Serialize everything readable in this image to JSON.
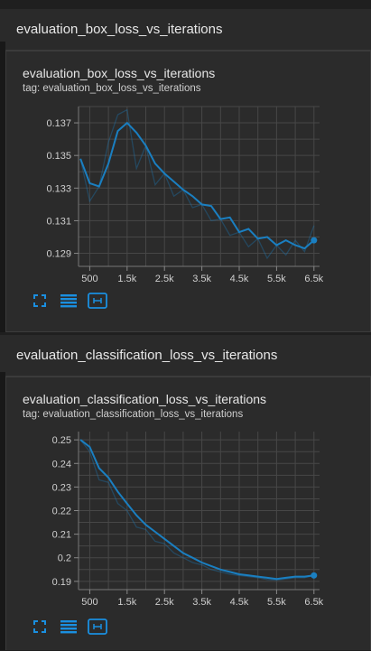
{
  "sections": [
    {
      "header": "evaluation_box_loss_vs_iterations",
      "card_title": "evaluation_box_loss_vs_iterations",
      "card_tag": "tag: evaluation_box_loss_vs_iterations"
    },
    {
      "header": "evaluation_classification_loss_vs_iterations",
      "card_title": "evaluation_classification_loss_vs_iterations",
      "card_tag": "tag: evaluation_classification_loss_vs_iterations"
    }
  ],
  "toolbar": {
    "icons": [
      "fullscreen-icon",
      "data-table-icon",
      "fit-domain-icon"
    ]
  },
  "colors": {
    "line": "#1a7fc1",
    "grid": "#474747",
    "axis_text": "#cfcfcf"
  },
  "chart_data": [
    {
      "type": "line",
      "title": "evaluation_box_loss_vs_iterations",
      "x_ticks": [
        500,
        1500,
        2500,
        3500,
        4500,
        5500,
        6500
      ],
      "x_tick_labels": [
        "500",
        "1.5k",
        "2.5k",
        "3.5k",
        "4.5k",
        "5.5k",
        "6.5k"
      ],
      "y_ticks": [
        0.129,
        0.131,
        0.133,
        0.135,
        0.137
      ],
      "y_tick_labels": [
        "0.129",
        "0.131",
        "0.133",
        "0.135",
        "0.137"
      ],
      "xlim": [
        200,
        6650
      ],
      "ylim": [
        0.1282,
        0.138
      ],
      "series": [
        {
          "x": [
            250,
            500,
            750,
            1000,
            1250,
            1500,
            1750,
            2000,
            2250,
            2500,
            2750,
            3000,
            3250,
            3500,
            3750,
            4000,
            4250,
            4500,
            4750,
            5000,
            5250,
            5500,
            5750,
            6000,
            6250,
            6500
          ],
          "y": [
            0.1348,
            0.1333,
            0.1331,
            0.1345,
            0.1365,
            0.137,
            0.1364,
            0.1356,
            0.1345,
            0.1339,
            0.1334,
            0.1329,
            0.1325,
            0.132,
            0.1319,
            0.1311,
            0.1312,
            0.1303,
            0.1305,
            0.1299,
            0.13,
            0.1295,
            0.1298,
            0.1295,
            0.1293,
            0.1298
          ]
        },
        {
          "x": [
            250,
            500,
            750,
            1000,
            1250,
            1500,
            1750,
            2000,
            2250,
            2500,
            2750,
            3000,
            3250,
            3500,
            3750,
            4000,
            4250,
            4500,
            4750,
            5000,
            5250,
            5500,
            5750,
            6000,
            6250,
            6500
          ],
          "y": [
            0.1348,
            0.1322,
            0.1331,
            0.1358,
            0.1375,
            0.1378,
            0.1342,
            0.1356,
            0.1332,
            0.1339,
            0.1325,
            0.1329,
            0.1318,
            0.132,
            0.131,
            0.1311,
            0.1301,
            0.1303,
            0.1294,
            0.1299,
            0.1287,
            0.1295,
            0.1289,
            0.1298,
            0.1291,
            0.1307
          ]
        }
      ]
    },
    {
      "type": "line",
      "title": "evaluation_classification_loss_vs_iterations",
      "x_ticks": [
        500,
        1500,
        2500,
        3500,
        4500,
        5500,
        6500
      ],
      "x_tick_labels": [
        "500",
        "1.5k",
        "2.5k",
        "3.5k",
        "4.5k",
        "5.5k",
        "6.5k"
      ],
      "y_ticks": [
        0.19,
        0.2,
        0.21,
        0.22,
        0.23,
        0.24,
        0.25
      ],
      "y_tick_labels": [
        "0.19",
        "0.2",
        "0.21",
        "0.22",
        "0.23",
        "0.24",
        "0.25"
      ],
      "xlim": [
        200,
        6650
      ],
      "ylim": [
        0.1865,
        0.2535
      ],
      "series": [
        {
          "x": [
            250,
            500,
            750,
            1000,
            1250,
            1500,
            1750,
            2000,
            2250,
            2500,
            2750,
            3000,
            3250,
            3500,
            3750,
            4000,
            4250,
            4500,
            4750,
            5000,
            5250,
            5500,
            5750,
            6000,
            6250,
            6500
          ],
          "y": [
            0.25,
            0.247,
            0.238,
            0.234,
            0.228,
            0.223,
            0.218,
            0.214,
            0.211,
            0.208,
            0.205,
            0.202,
            0.2,
            0.198,
            0.1965,
            0.195,
            0.194,
            0.193,
            0.1925,
            0.192,
            0.1915,
            0.191,
            0.1915,
            0.192,
            0.192,
            0.1925
          ]
        },
        {
          "x": [
            250,
            500,
            750,
            1000,
            1250,
            1500,
            1750,
            2000,
            2250,
            2500,
            2750,
            3000,
            3250,
            3500,
            3750,
            4000,
            4250,
            4500,
            4750,
            5000,
            5250,
            5500,
            5750,
            6000,
            6250,
            6500
          ],
          "y": [
            0.25,
            0.245,
            0.233,
            0.232,
            0.223,
            0.22,
            0.213,
            0.212,
            0.207,
            0.206,
            0.202,
            0.2,
            0.198,
            0.197,
            0.195,
            0.194,
            0.193,
            0.1925,
            0.192,
            0.1915,
            0.1908,
            0.1905,
            0.191,
            0.1915,
            0.1915,
            0.1925
          ]
        }
      ]
    }
  ]
}
